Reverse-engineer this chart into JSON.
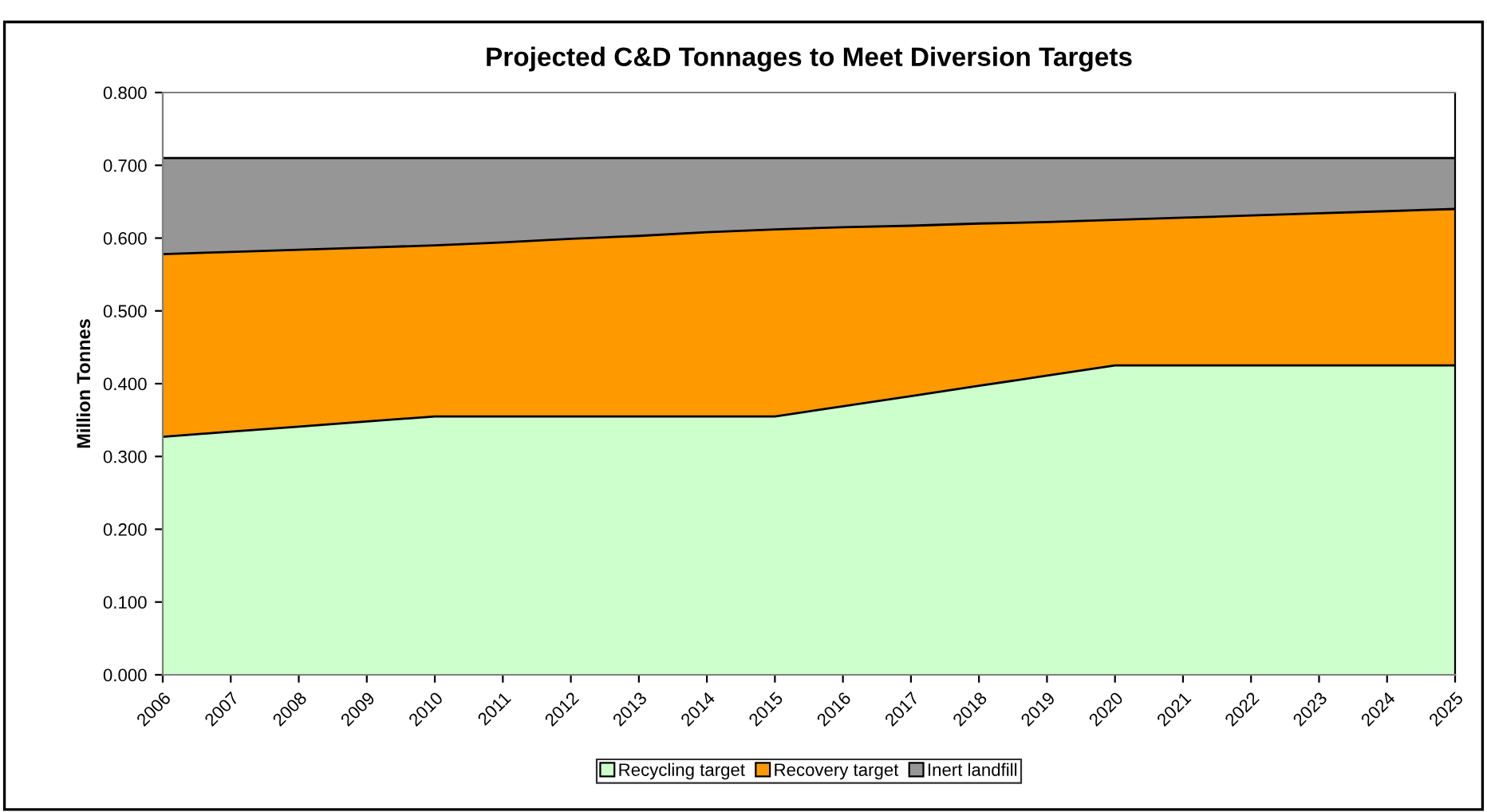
{
  "chart_data": {
    "type": "area",
    "stacked": true,
    "title": "Projected C&D Tonnages to Meet Diversion Targets",
    "ylabel": "Million Tonnes",
    "categories": [
      "2006",
      "2007",
      "2008",
      "2009",
      "2010",
      "2011",
      "2012",
      "2013",
      "2014",
      "2015",
      "2016",
      "2017",
      "2018",
      "2019",
      "2020",
      "2021",
      "2022",
      "2023",
      "2024",
      "2025"
    ],
    "series": [
      {
        "name": "Recycling target",
        "color": "#ccffcc",
        "values": [
          0.327,
          0.334,
          0.341,
          0.348,
          0.355,
          0.355,
          0.355,
          0.355,
          0.355,
          0.355,
          0.369,
          0.383,
          0.397,
          0.411,
          0.425,
          0.425,
          0.425,
          0.425,
          0.425,
          0.425
        ]
      },
      {
        "name": "Recovery target",
        "color": "#ff9900",
        "values": [
          0.251,
          0.247,
          0.243,
          0.239,
          0.235,
          0.239,
          0.244,
          0.248,
          0.253,
          0.257,
          0.246,
          0.234,
          0.223,
          0.211,
          0.2,
          0.203,
          0.206,
          0.209,
          0.212,
          0.215
        ]
      },
      {
        "name": "Inert landfill",
        "color": "#969696",
        "values": [
          0.132,
          0.129,
          0.126,
          0.123,
          0.12,
          0.116,
          0.111,
          0.107,
          0.102,
          0.098,
          0.095,
          0.093,
          0.09,
          0.088,
          0.085,
          0.082,
          0.079,
          0.076,
          0.073,
          0.07
        ]
      }
    ],
    "ylim": [
      0,
      0.8
    ],
    "yticks": [
      {
        "value": 0,
        "label": "0.000"
      },
      {
        "value": 0.1,
        "label": "0.100"
      },
      {
        "value": 0.2,
        "label": "0.200"
      },
      {
        "value": 0.3,
        "label": "0.300"
      },
      {
        "value": 0.4,
        "label": "0.400"
      },
      {
        "value": 0.5,
        "label": "0.500"
      },
      {
        "value": 0.6,
        "label": "0.600"
      },
      {
        "value": 0.7,
        "label": "0.700"
      },
      {
        "value": 0.8,
        "label": "0.800"
      }
    ],
    "legend": "bottom"
  }
}
